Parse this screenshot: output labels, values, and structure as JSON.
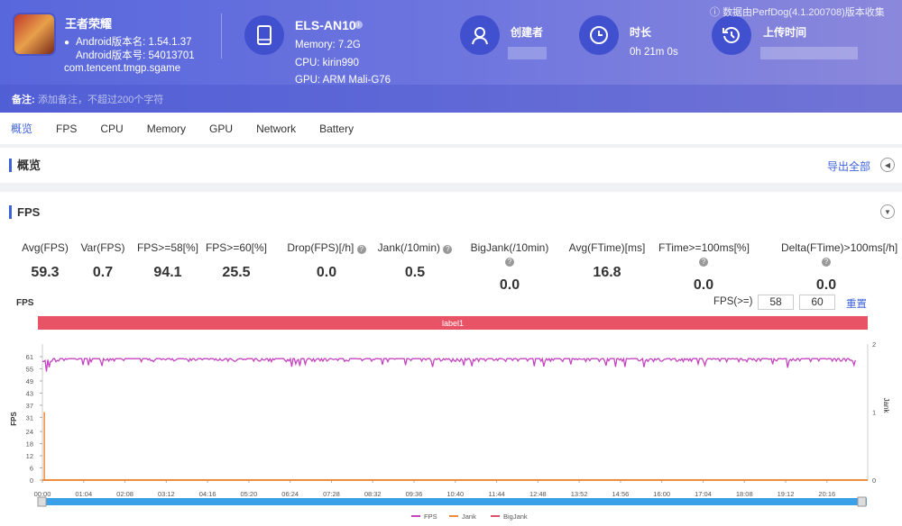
{
  "app": {
    "name": "王者荣耀",
    "version_name": "Android版本名: 1.54.1.37",
    "version_code": "Android版本号: 54013701",
    "package": "com.tencent.tmgp.sgame"
  },
  "device": {
    "name": "ELS-AN10",
    "memory": "Memory: 7.2G",
    "cpu": "CPU: kirin990",
    "gpu": "GPU: ARM Mali-G76"
  },
  "creator": {
    "label": "创建者"
  },
  "duration": {
    "label": "时长",
    "value": "0h 21m 0s"
  },
  "upload": {
    "label": "上传时间"
  },
  "collected_by": "数据由PerfDog(4.1.200708)版本收集",
  "note": {
    "label": "备注:",
    "placeholder": "添加备注，不超过200个字符"
  },
  "tabs": [
    "概览",
    "FPS",
    "CPU",
    "Memory",
    "GPU",
    "Network",
    "Battery"
  ],
  "overview": {
    "title": "概览",
    "export": "导出全部"
  },
  "fps_section": {
    "title": "FPS"
  },
  "stats": [
    {
      "label": "Avg(FPS)",
      "value": "59.3"
    },
    {
      "label": "Var(FPS)",
      "value": "0.7"
    },
    {
      "label": "FPS>=58[%]",
      "value": "94.1"
    },
    {
      "label": "FPS>=60[%]",
      "value": "25.5"
    },
    {
      "label": "Drop(FPS)[/h]",
      "value": "0.0"
    },
    {
      "label": "Jank(/10min)",
      "value": "0.5"
    },
    {
      "label": "BigJank(/10min)",
      "value": "0.0"
    },
    {
      "label": "Avg(FTime)[ms]",
      "value": "16.8"
    },
    {
      "label": "FTime>=100ms[%]",
      "value": "0.0"
    },
    {
      "label": "Delta(FTime)>100ms[/h]",
      "value": "0.0"
    }
  ],
  "threshold": {
    "label": "FPS(>=)",
    "v1": "58",
    "v2": "60",
    "reset": "重置"
  },
  "colors": {
    "fps": "#c544c0",
    "jank": "#f08a3c",
    "bigjank": "#e0506a",
    "label_bar": "#e85466",
    "scroll": "#3aa0e8"
  },
  "chart_data": {
    "type": "line",
    "title": "FPS",
    "label_band": "label1",
    "ylabel": "FPS",
    "y2label": "Jank",
    "ylim": [
      0,
      61
    ],
    "y2lim": [
      0,
      2
    ],
    "yticks": [
      "0",
      "6",
      "12",
      "18",
      "24",
      "31",
      "37",
      "43",
      "49",
      "55",
      "61"
    ],
    "y2ticks": [
      "0",
      "1",
      "2"
    ],
    "xticks": [
      "00:00",
      "01:04",
      "02:08",
      "03:12",
      "04:16",
      "05:20",
      "06:24",
      "07:28",
      "08:32",
      "09:36",
      "10:40",
      "11:44",
      "12:48",
      "13:52",
      "14:56",
      "16:00",
      "17:04",
      "18:08",
      "19:12",
      "20:16"
    ],
    "x_range_minutes": [
      0,
      21
    ],
    "series": [
      {
        "name": "FPS",
        "mean": 59.3,
        "min": 53,
        "max": 60
      },
      {
        "name": "Jank",
        "spikes": [
          {
            "t_min": 0.05,
            "value": 1
          }
        ]
      },
      {
        "name": "BigJank",
        "values_all": 0
      }
    ]
  }
}
